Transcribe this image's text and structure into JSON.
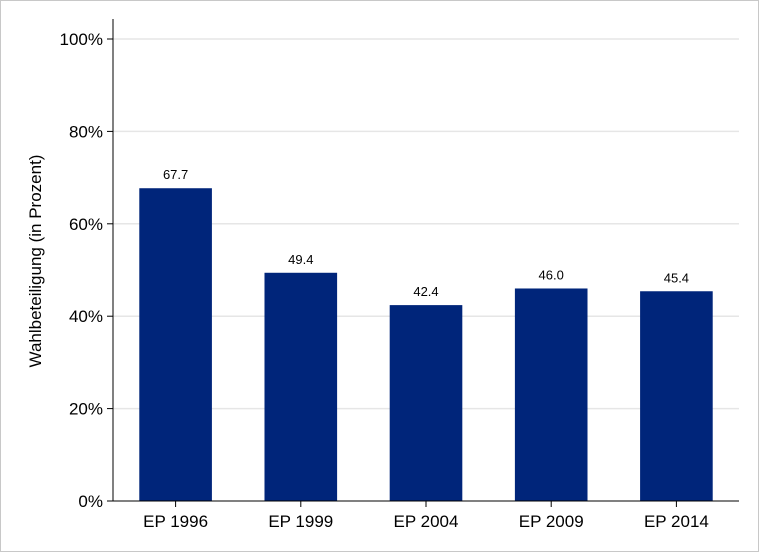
{
  "chart_data": {
    "type": "bar",
    "ylabel": "Wahlbeteiligung (in Prozent)",
    "xlabel": "",
    "categories": [
      "EP 1996",
      "EP 1999",
      "EP 2004",
      "EP 2009",
      "EP 2014"
    ],
    "values": [
      67.7,
      49.4,
      42.4,
      46.0,
      45.4
    ],
    "value_labels": [
      "67.7",
      "49.4",
      "42.4",
      "46.0",
      "45.4"
    ],
    "ylim": [
      0,
      100
    ],
    "yticks": [
      0,
      20,
      40,
      60,
      80,
      100
    ],
    "ytick_labels": [
      "0%",
      "20%",
      "40%",
      "60%",
      "80%",
      "100%"
    ],
    "grid": true,
    "bar_color": "#00257a",
    "grid_color": "#e6e6e6"
  }
}
